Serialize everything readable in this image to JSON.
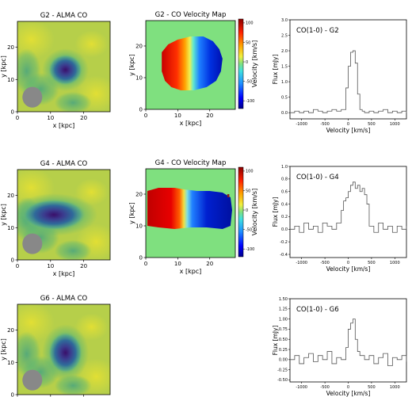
{
  "panels": [
    {
      "alma": {
        "title": "G2 - ALMA CO",
        "xlabel": "x [kpc]",
        "ylabel": "y [kpc]",
        "xticks": [
          "0",
          "10",
          "20"
        ],
        "yticks": [
          "0",
          "10",
          "20"
        ],
        "blob": {
          "x_kpc": 14.5,
          "y_kpc": 13,
          "rx_kpc": 3.2,
          "ry_kpc": 3
        },
        "beam": {
          "x_kpc": 4.5,
          "y_kpc": 4.5,
          "rx_kpc": 3.0,
          "ry_kpc": 3.2
        }
      },
      "velmap": {
        "title": "G2 - CO Velocity Map",
        "xlabel": "x [kpc]",
        "ylabel": "y [kpc]",
        "xticks": [
          "0",
          "10",
          "20"
        ],
        "yticks": [
          "0",
          "10",
          "20"
        ],
        "cbar_label": "Velocity [km/s]",
        "cbar_ticks": [
          "100",
          "50",
          "0",
          "-50",
          "-100"
        ]
      },
      "spectrum": {
        "title": "CO(1-0) - G2",
        "xlabel": "Velocity [km/s]",
        "ylabel": "Flux [mJy]",
        "xticks": [
          "-1000",
          "-500",
          "0",
          "500",
          "1000"
        ],
        "yticks": [
          "0.0",
          "0.5",
          "1.0",
          "1.5",
          "2.0",
          "2.5",
          "3.0"
        ]
      }
    },
    {
      "alma": {
        "title": "G4 - ALMA CO",
        "xlabel": "x [kpc]",
        "ylabel": "y [kpc]",
        "xticks": [
          "0",
          "10",
          "20"
        ],
        "yticks": [
          "0",
          "10",
          "20"
        ],
        "blob": {
          "x_kpc": 11,
          "y_kpc": 14,
          "rx_kpc": 6,
          "ry_kpc": 3
        },
        "beam": {
          "x_kpc": 4.5,
          "y_kpc": 5,
          "rx_kpc": 3.0,
          "ry_kpc": 3.2
        }
      },
      "velmap": {
        "title": "G4 - CO Velocity Map",
        "xlabel": "x [kpc]",
        "ylabel": "y [kpc]",
        "xticks": [
          "0",
          "10",
          "20"
        ],
        "yticks": [
          "0",
          "10",
          "20"
        ],
        "cbar_label": "Velocity [km/s]",
        "cbar_ticks": [
          "100",
          "50",
          "0",
          "-50",
          "-100"
        ]
      },
      "spectrum": {
        "title": "CO(1-0) - G4",
        "xlabel": "Velocity [km/s]",
        "ylabel": "Flux [mJy]",
        "xticks": [
          "-1000",
          "-500",
          "0",
          "500",
          "1000"
        ],
        "yticks": [
          "-0.4",
          "-0.2",
          "0.0",
          "0.2",
          "0.4",
          "0.6",
          "0.8",
          "1.0"
        ]
      }
    },
    {
      "alma": {
        "title": "G6 - ALMA CO",
        "xlabel": "x [kpc]",
        "ylabel": "y [kpc]",
        "xticks": [
          "0",
          "10",
          "20"
        ],
        "yticks": [
          "0",
          "10",
          "20"
        ],
        "blob": {
          "x_kpc": 14.5,
          "y_kpc": 13,
          "rx_kpc": 3.2,
          "ry_kpc": 4
        },
        "beam": {
          "x_kpc": 4.5,
          "y_kpc": 4.5,
          "rx_kpc": 3.0,
          "ry_kpc": 3.2
        }
      },
      "spectrum": {
        "title": "CO(1-0) - G6",
        "xlabel": "Velocity [km/s]",
        "ylabel": "Flux [mJy]",
        "xticks": [
          "-1000",
          "-500",
          "0",
          "500",
          "1000"
        ],
        "yticks": [
          "-0.50",
          "-0.25",
          "0.00",
          "0.25",
          "0.50",
          "0.75",
          "1.00",
          "1.25",
          "1.50"
        ]
      }
    }
  ],
  "colors": {
    "alma_bg": "#b6cf4a",
    "blob_core": "#3a0f6a",
    "beam": "#888888",
    "vel_bg": "#7fe07f",
    "vel_red": "#c80000",
    "vel_blue": "#0010b0"
  },
  "chart_data": [
    {
      "type": "heatmap",
      "title": "G2 - ALMA CO",
      "xlabel": "x [kpc]",
      "ylabel": "y [kpc]",
      "xlim": [
        0,
        28
      ],
      "ylim": [
        0,
        28
      ]
    },
    {
      "type": "heatmap",
      "title": "G2 - CO Velocity Map",
      "xlabel": "x [kpc]",
      "ylabel": "y [kpc]",
      "xlim": [
        0,
        28
      ],
      "ylim": [
        0,
        28
      ],
      "colorbar_range": [
        -120,
        110
      ]
    },
    {
      "type": "line",
      "title": "CO(1-0) - G2",
      "xlabel": "Velocity [km/s]",
      "ylabel": "Flux [mJy]",
      "xlim": [
        -1250,
        1250
      ],
      "ylim": [
        -0.2,
        3.0
      ],
      "x": [
        -1250,
        -1150,
        -1050,
        -950,
        -850,
        -750,
        -650,
        -550,
        -450,
        -350,
        -250,
        -150,
        -50,
        0,
        50,
        100,
        150,
        200,
        250,
        300,
        350,
        450,
        550,
        650,
        750,
        850,
        950,
        1050,
        1150,
        1250
      ],
      "y": [
        0.0,
        0.05,
        0.0,
        0.05,
        0.0,
        0.1,
        0.05,
        0.0,
        0.05,
        0.1,
        0.05,
        0.1,
        0.8,
        1.5,
        1.95,
        2.0,
        1.6,
        0.6,
        0.1,
        0.05,
        0.0,
        0.05,
        0.0,
        0.05,
        0.1,
        0.0,
        0.05,
        0.0,
        0.05,
        0.0
      ]
    },
    {
      "type": "heatmap",
      "title": "G4 - ALMA CO",
      "xlabel": "x [kpc]",
      "ylabel": "y [kpc]",
      "xlim": [
        0,
        28
      ],
      "ylim": [
        0,
        28
      ]
    },
    {
      "type": "heatmap",
      "title": "G4 - CO Velocity Map",
      "xlabel": "x [kpc]",
      "ylabel": "y [kpc]",
      "xlim": [
        0,
        28
      ],
      "ylim": [
        0,
        28
      ],
      "colorbar_range": [
        -120,
        110
      ]
    },
    {
      "type": "line",
      "title": "CO(1-0) - G4",
      "xlabel": "Velocity [km/s]",
      "ylabel": "Flux [mJy]",
      "xlim": [
        -1250,
        1250
      ],
      "ylim": [
        -0.45,
        1.0
      ],
      "x": [
        -1250,
        -1150,
        -1050,
        -950,
        -850,
        -750,
        -650,
        -550,
        -450,
        -350,
        -250,
        -150,
        -100,
        -50,
        0,
        50,
        100,
        150,
        200,
        250,
        300,
        350,
        400,
        450,
        550,
        650,
        750,
        850,
        950,
        1050,
        1150,
        1250
      ],
      "y": [
        0.0,
        0.05,
        -0.05,
        0.1,
        0.0,
        0.05,
        -0.05,
        0.1,
        0.05,
        0.0,
        0.1,
        0.3,
        0.45,
        0.5,
        0.6,
        0.7,
        0.75,
        0.65,
        0.7,
        0.6,
        0.65,
        0.55,
        0.4,
        0.05,
        -0.05,
        0.1,
        0.0,
        0.05,
        -0.05,
        0.05,
        0.0,
        0.05
      ]
    },
    {
      "type": "heatmap",
      "title": "G6 - ALMA CO",
      "xlabel": "x [kpc]",
      "ylabel": "y [kpc]",
      "xlim": [
        0,
        28
      ],
      "ylim": [
        0,
        28
      ]
    },
    {
      "type": "line",
      "title": "CO(1-0) - G6",
      "xlabel": "Velocity [km/s]",
      "ylabel": "Flux [mJy]",
      "xlim": [
        -1250,
        1250
      ],
      "ylim": [
        -0.55,
        1.5
      ],
      "x": [
        -1250,
        -1150,
        -1050,
        -950,
        -850,
        -750,
        -650,
        -550,
        -450,
        -350,
        -250,
        -150,
        -50,
        0,
        50,
        100,
        150,
        200,
        250,
        350,
        450,
        550,
        650,
        750,
        850,
        950,
        1050,
        1150,
        1250
      ],
      "y": [
        0.0,
        0.1,
        -0.1,
        0.05,
        0.15,
        -0.05,
        0.1,
        0.0,
        0.2,
        -0.1,
        0.05,
        0.0,
        0.3,
        0.75,
        0.9,
        1.0,
        0.5,
        0.2,
        0.1,
        0.0,
        0.1,
        -0.1,
        0.05,
        0.15,
        -0.15,
        0.05,
        0.0,
        0.1,
        -0.05
      ]
    }
  ]
}
